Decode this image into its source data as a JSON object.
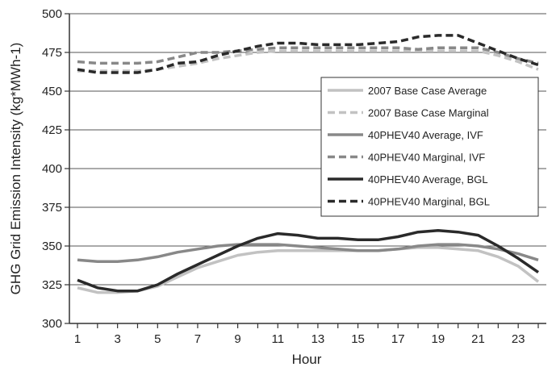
{
  "chart_data": {
    "type": "line",
    "title": "",
    "xlabel": "Hour",
    "ylabel": "GHG Grid Emission Intensity (kg*MWh-1)",
    "xlim": [
      1,
      24
    ],
    "ylim": [
      300,
      500
    ],
    "x_ticks": [
      1,
      3,
      5,
      7,
      9,
      11,
      13,
      15,
      17,
      19,
      21,
      23
    ],
    "y_ticks": [
      300,
      325,
      350,
      375,
      400,
      425,
      450,
      475,
      500
    ],
    "grid": "horizontal",
    "legend_position": "right",
    "x": [
      1,
      2,
      3,
      4,
      5,
      6,
      7,
      8,
      9,
      10,
      11,
      12,
      13,
      14,
      15,
      16,
      17,
      18,
      19,
      20,
      21,
      22,
      23,
      24
    ],
    "series": [
      {
        "name": "2007 Base Case Average",
        "color": "#c2c2c2",
        "dashed": false,
        "values": [
          323,
          320,
          320,
          321,
          324,
          330,
          336,
          340,
          344,
          346,
          347,
          347,
          347,
          347,
          347,
          347,
          348,
          349,
          349,
          348,
          347,
          343,
          337,
          327
        ]
      },
      {
        "name": "2007 Base Case Marginal",
        "color": "#c2c2c2",
        "dashed": true,
        "values": [
          463,
          463,
          463,
          463,
          464,
          466,
          468,
          471,
          473,
          475,
          476,
          476,
          476,
          476,
          476,
          476,
          476,
          476,
          476,
          476,
          476,
          473,
          469,
          464
        ]
      },
      {
        "name": "40PHEV40 Average, IVF",
        "color": "#888888",
        "dashed": false,
        "values": [
          341,
          340,
          340,
          341,
          343,
          346,
          348,
          350,
          351,
          351,
          351,
          350,
          349,
          348,
          347,
          347,
          348,
          350,
          351,
          351,
          350,
          348,
          345,
          341
        ]
      },
      {
        "name": "40PHEV40 Marginal, IVF",
        "color": "#888888",
        "dashed": true,
        "values": [
          469,
          468,
          468,
          468,
          469,
          472,
          475,
          475,
          476,
          477,
          478,
          478,
          478,
          478,
          478,
          478,
          478,
          477,
          478,
          478,
          478,
          475,
          471,
          468
        ]
      },
      {
        "name": "40PHEV40 Average, BGL",
        "color": "#2a2a2a",
        "dashed": false,
        "values": [
          328,
          323,
          321,
          321,
          325,
          332,
          338,
          344,
          350,
          355,
          358,
          357,
          355,
          355,
          354,
          354,
          356,
          359,
          360,
          359,
          357,
          350,
          342,
          333
        ]
      },
      {
        "name": "40PHEV40 Marginal, BGL",
        "color": "#2a2a2a",
        "dashed": true,
        "values": [
          464,
          462,
          462,
          462,
          464,
          468,
          469,
          473,
          476,
          479,
          481,
          481,
          480,
          480,
          480,
          481,
          482,
          485,
          486,
          486,
          481,
          476,
          471,
          467
        ]
      }
    ]
  }
}
